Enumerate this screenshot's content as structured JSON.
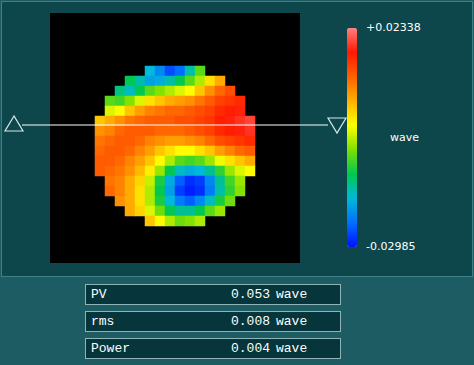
{
  "chart_data": {
    "type": "heatmap",
    "cells": [
      [
        null,
        null,
        null,
        null,
        null,
        -0.018,
        -0.022,
        -0.026,
        -0.024,
        -0.016,
        -0.008,
        null,
        null,
        null,
        null,
        null
      ],
      [
        null,
        null,
        null,
        -0.012,
        -0.016,
        -0.02,
        -0.019,
        -0.016,
        -0.012,
        -0.008,
        -0.004,
        0.002,
        0.006,
        null,
        null,
        null
      ],
      [
        null,
        null,
        -0.014,
        -0.017,
        -0.012,
        -0.008,
        -0.006,
        -0.004,
        -0.002,
        0.0,
        0.004,
        0.008,
        0.011,
        0.013,
        null,
        null
      ],
      [
        null,
        -0.008,
        -0.009,
        -0.006,
        -0.002,
        0.002,
        0.004,
        0.006,
        0.007,
        0.008,
        0.01,
        0.012,
        0.014,
        0.015,
        0.016,
        null
      ],
      [
        null,
        -0.002,
        0.0,
        0.004,
        0.007,
        0.009,
        0.01,
        0.011,
        0.011,
        0.012,
        0.013,
        0.014,
        0.016,
        0.017,
        0.018,
        null
      ],
      [
        0.004,
        0.006,
        0.008,
        0.01,
        0.011,
        0.012,
        0.012,
        0.012,
        0.013,
        0.013,
        0.014,
        0.015,
        0.017,
        0.018,
        0.019,
        0.02
      ],
      [
        0.008,
        0.009,
        0.011,
        0.012,
        0.012,
        0.012,
        0.011,
        0.011,
        0.011,
        0.012,
        0.013,
        0.014,
        0.016,
        0.017,
        0.018,
        0.019
      ],
      [
        0.01,
        0.011,
        0.012,
        0.012,
        0.011,
        0.009,
        0.008,
        0.007,
        0.007,
        0.008,
        0.009,
        0.011,
        0.013,
        0.014,
        0.015,
        0.016
      ],
      [
        0.011,
        0.012,
        0.012,
        0.011,
        0.009,
        0.007,
        0.004,
        0.002,
        0.0,
        0.0,
        0.002,
        0.004,
        0.007,
        0.009,
        0.011,
        0.012
      ],
      [
        0.012,
        0.012,
        0.011,
        0.009,
        0.007,
        0.004,
        0.0,
        -0.004,
        -0.008,
        -0.009,
        -0.008,
        -0.005,
        -0.001,
        0.002,
        0.004,
        0.006
      ],
      [
        0.012,
        0.011,
        0.01,
        0.008,
        0.005,
        0.001,
        -0.005,
        -0.012,
        -0.017,
        -0.019,
        -0.018,
        -0.015,
        -0.01,
        -0.005,
        -0.002,
        0.0
      ],
      [
        null,
        0.01,
        0.009,
        0.006,
        0.003,
        -0.003,
        -0.011,
        -0.019,
        -0.025,
        -0.028,
        -0.027,
        -0.022,
        -0.015,
        -0.009,
        -0.005,
        null
      ],
      [
        null,
        0.011,
        0.009,
        0.006,
        0.002,
        -0.004,
        -0.012,
        -0.02,
        -0.027,
        -0.029,
        -0.028,
        -0.023,
        -0.016,
        -0.01,
        -0.006,
        null
      ],
      [
        null,
        null,
        0.008,
        0.006,
        0.002,
        -0.004,
        -0.011,
        -0.018,
        -0.023,
        -0.025,
        -0.022,
        -0.017,
        -0.011,
        -0.007,
        null,
        null
      ],
      [
        null,
        null,
        null,
        0.006,
        0.003,
        -0.002,
        -0.007,
        -0.012,
        -0.015,
        -0.015,
        -0.012,
        -0.008,
        -0.005,
        null,
        null,
        null
      ],
      [
        null,
        null,
        null,
        null,
        null,
        0.004,
        0.0,
        -0.004,
        -0.007,
        -0.006,
        -0.004,
        null,
        null,
        null,
        null,
        null
      ]
    ],
    "colorbar": {
      "range": [
        -0.02985,
        0.02338
      ],
      "ticks": [
        {
          "value": 0.02338,
          "label": "+0.02338"
        },
        -0.02985
      ],
      "label": "wave"
    },
    "tick_labels": false,
    "stats": [
      {
        "name": "PV",
        "value": 0.053,
        "unit": "wave"
      },
      {
        "name": "rms",
        "value": 0.008,
        "unit": "wave"
      },
      {
        "name": "Power",
        "value": 0.004,
        "unit": "wave"
      }
    ]
  }
}
